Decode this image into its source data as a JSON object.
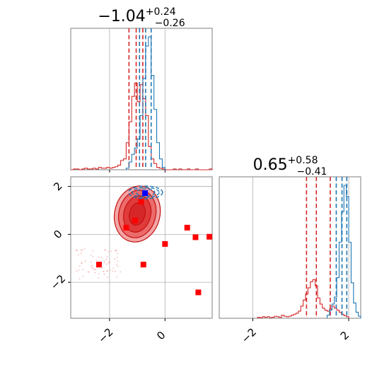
{
  "chart_data": [
    {
      "type": "histogram",
      "panel": "top-left",
      "title": {
        "main": "−1.04",
        "sup": "+0.24",
        "sub": "−0.26"
      },
      "xlim": [
        -3.4,
        1.7
      ],
      "xticks": [
        -2,
        0
      ],
      "series": [
        {
          "name": "",
          "color": "#d62728",
          "bin_edges": [
            -3.4,
            -3.3,
            -3.2,
            -3.1,
            -3.0,
            -2.9,
            -2.8,
            -2.7,
            -2.6,
            -2.5,
            -2.4,
            -2.3,
            -2.2,
            -2.1,
            -2.0,
            -1.9,
            -1.8,
            -1.7,
            -1.6,
            -1.5,
            -1.4,
            -1.3,
            -1.2,
            -1.1,
            -1.0,
            -0.9,
            -0.8,
            -0.7,
            -0.6,
            -0.5,
            -0.4,
            -0.3,
            -0.2,
            -0.1,
            0.0,
            0.1,
            0.2,
            0.3,
            0.4,
            0.5,
            0.6,
            0.7,
            0.8,
            0.9,
            1.0,
            1.1,
            1.2,
            1.3,
            1.4,
            1.5,
            1.6,
            1.7
          ],
          "counts": [
            0,
            1,
            1,
            0,
            1,
            2,
            1,
            1,
            2,
            1,
            3,
            2,
            2,
            3,
            2,
            3,
            4,
            6,
            12,
            14,
            35,
            62,
            95,
            112,
            88,
            110,
            92,
            70,
            30,
            14,
            8,
            3,
            2,
            1,
            0,
            0,
            0,
            1,
            0,
            1,
            0,
            0,
            1,
            0,
            0,
            1,
            0,
            0,
            0,
            0,
            1
          ],
          "quantiles": [
            -1.3,
            -0.8,
            -1.04
          ]
        },
        {
          "name": "",
          "color": "#1f77b4",
          "bin_edges": [
            -1.4,
            -1.3,
            -1.2,
            -1.1,
            -1.0,
            -0.9,
            -0.8,
            -0.7,
            -0.6,
            -0.5,
            -0.4,
            -0.3,
            -0.2,
            -0.1,
            0.0
          ],
          "counts": [
            2,
            10,
            20,
            28,
            40,
            70,
            118,
            160,
            172,
            122,
            78,
            35,
            14,
            3
          ],
          "quantiles": [
            -0.92,
            -0.5,
            -0.7
          ]
        }
      ]
    },
    {
      "type": "contour",
      "panel": "bottom-left",
      "xlim": [
        -3.4,
        1.7
      ],
      "ylim": [
        -3.5,
        2.4
      ],
      "xticks": [
        -2,
        0
      ],
      "yticks": [
        -2,
        0,
        2
      ],
      "truth_point": {
        "x": -0.72,
        "y": 1.72,
        "color": "#0000ff"
      },
      "red_points": [
        {
          "x": -0.86,
          "y": 1.36
        },
        {
          "x": -1.08,
          "y": 0.58
        },
        {
          "x": -1.4,
          "y": 0.28
        },
        {
          "x": 0.8,
          "y": 0.28
        },
        {
          "x": 1.1,
          "y": -0.12
        },
        {
          "x": 1.6,
          "y": -0.1
        },
        {
          "x": 0.0,
          "y": -0.4
        },
        {
          "x": -0.78,
          "y": -1.26
        },
        {
          "x": -2.38,
          "y": -1.26
        },
        {
          "x": 1.2,
          "y": -2.42
        }
      ],
      "blue_cloud_center": {
        "x": -0.7,
        "y": 1.75
      },
      "red_cloud_center": {
        "x": -1.0,
        "y": 0.85
      }
    },
    {
      "type": "histogram",
      "panel": "bottom-right",
      "title": {
        "main": "0.65",
        "sup": "+0.58",
        "sub": "−0.41"
      },
      "xlim": [
        -3.4,
        2.5
      ],
      "xticks": [
        -2,
        2
      ],
      "series": [
        {
          "name": "",
          "color": "#d62728",
          "bin_edges": [
            -1.8,
            -1.7,
            -1.6,
            -1.5,
            -1.4,
            -1.3,
            -1.2,
            -1.1,
            -1.0,
            -0.9,
            -0.8,
            -0.7,
            -0.6,
            -0.5,
            -0.4,
            -0.3,
            -0.2,
            -0.1,
            0.0,
            0.1,
            0.2,
            0.3,
            0.4,
            0.5,
            0.6,
            0.7,
            0.8,
            0.9,
            1.0,
            1.1,
            1.2,
            1.3,
            1.4,
            1.5,
            1.6,
            1.7,
            1.8,
            1.9,
            2.0
          ],
          "counts": [
            2,
            1,
            3,
            2,
            3,
            1,
            2,
            4,
            3,
            2,
            6,
            4,
            3,
            4,
            6,
            8,
            10,
            14,
            24,
            36,
            48,
            60,
            72,
            76,
            64,
            40,
            28,
            20,
            16,
            14,
            18,
            24,
            20,
            16,
            12,
            8,
            5,
            3
          ],
          "quantiles": [
            0.24,
            1.23,
            0.65
          ]
        },
        {
          "name": "",
          "color": "#1f77b4",
          "bin_edges": [
            1.1,
            1.2,
            1.3,
            1.4,
            1.5,
            1.6,
            1.7,
            1.8,
            1.9,
            2.0,
            2.1,
            2.2,
            2.3,
            2.4,
            2.5
          ],
          "counts": [
            6,
            16,
            28,
            42,
            80,
            150,
            210,
            262,
            240,
            150,
            70,
            30,
            12,
            4
          ],
          "quantiles": [
            1.48,
            1.92,
            1.72
          ]
        }
      ]
    }
  ]
}
